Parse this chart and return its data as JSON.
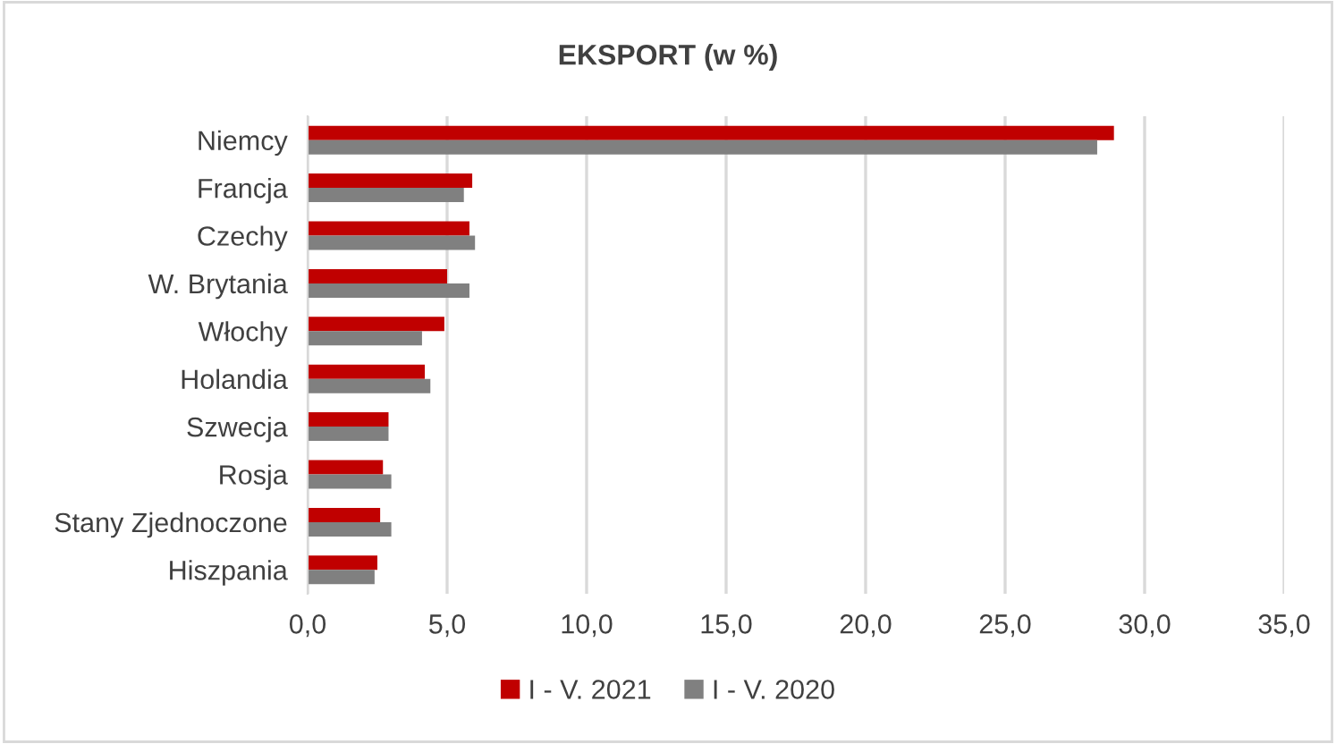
{
  "chart_data": {
    "type": "bar",
    "orientation": "horizontal",
    "title": "EKSPORT (w %)",
    "categories": [
      "Niemcy",
      "Francja",
      "Czechy",
      "W. Brytania",
      "Włochy",
      "Holandia",
      "Szwecja",
      "Rosja",
      "Stany Zjednoczone",
      "Hiszpania"
    ],
    "series": [
      {
        "name": "I - V. 2021",
        "color": "#c00000",
        "values": [
          28.9,
          5.9,
          5.8,
          5.0,
          4.9,
          4.2,
          2.9,
          2.7,
          2.6,
          2.5
        ]
      },
      {
        "name": "I - V. 2020",
        "color": "#808080",
        "values": [
          28.3,
          5.6,
          6.0,
          5.8,
          4.1,
          4.4,
          2.9,
          3.0,
          3.0,
          2.4
        ]
      }
    ],
    "xlim": [
      0,
      35
    ],
    "xticks": [
      {
        "value": 0,
        "label": "0,0"
      },
      {
        "value": 5,
        "label": "5,0"
      },
      {
        "value": 10,
        "label": "10,0"
      },
      {
        "value": 15,
        "label": "15,0"
      },
      {
        "value": 20,
        "label": "20,0"
      },
      {
        "value": 25,
        "label": "25,0"
      },
      {
        "value": 30,
        "label": "30,0"
      },
      {
        "value": 35,
        "label": "35,0"
      }
    ],
    "grid": "x",
    "legend": "bottom"
  }
}
